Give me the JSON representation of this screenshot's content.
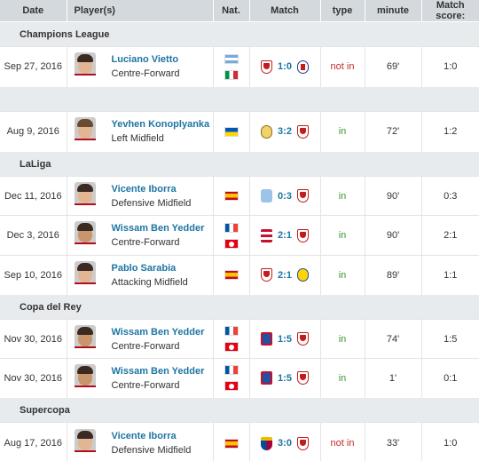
{
  "headers": {
    "date": "Date",
    "players": "Player(s)",
    "nat": "Nat.",
    "match": "Match",
    "type": "type",
    "minute": "minute",
    "score": "Match score:"
  },
  "rows": [
    {
      "kind": "section",
      "title": "Champions League"
    },
    {
      "kind": "player",
      "date": "Sep 27, 2016",
      "name": "Luciano Vietto",
      "position": "Centre-Forward",
      "flags": [
        "argentina",
        "italy"
      ],
      "home_crest": "sevilla-crest",
      "result": "1:0",
      "away_crest": "lyon-crest",
      "type": "not in",
      "minute": "69'",
      "match_score": "1:0"
    },
    {
      "kind": "blank"
    },
    {
      "kind": "player",
      "date": "Aug 9, 2016",
      "name": "Yevhen Konoplyanka",
      "position": "Left Midfield",
      "flags": [
        "ukraine"
      ],
      "home_crest": "real-madrid-crest",
      "result": "3:2",
      "away_crest": "sevilla-crest",
      "type": "in",
      "minute": "72'",
      "match_score": "1:2"
    },
    {
      "kind": "section",
      "title": "LaLiga"
    },
    {
      "kind": "player",
      "date": "Dec 11, 2016",
      "name": "Vicente Iborra",
      "position": "Defensive Midfield",
      "flags": [
        "spain"
      ],
      "home_crest": "celta-crest",
      "result": "0:3",
      "away_crest": "sevilla-crest",
      "type": "in",
      "minute": "90'",
      "match_score": "0:3"
    },
    {
      "kind": "player",
      "date": "Dec 3, 2016",
      "name": "Wissam Ben Yedder",
      "position": "Centre-Forward",
      "flags": [
        "france",
        "tunisia"
      ],
      "home_crest": "granada-crest",
      "result": "2:1",
      "away_crest": "sevilla-crest",
      "type": "in",
      "minute": "90'",
      "match_score": "2:1"
    },
    {
      "kind": "player",
      "date": "Sep 10, 2016",
      "name": "Pablo Sarabia",
      "position": "Attacking Midfield",
      "flags": [
        "spain"
      ],
      "home_crest": "sevilla-crest",
      "result": "2:1",
      "away_crest": "las-palmas-crest",
      "type": "in",
      "minute": "89'",
      "match_score": "1:1"
    },
    {
      "kind": "section",
      "title": "Copa del Rey"
    },
    {
      "kind": "player",
      "date": "Nov 30, 2016",
      "name": "Wissam Ben Yedder",
      "position": "Centre-Forward",
      "flags": [
        "france",
        "tunisia"
      ],
      "home_crest": "formentera-crest",
      "result": "1:5",
      "away_crest": "sevilla-crest",
      "type": "in",
      "minute": "74'",
      "match_score": "1:5"
    },
    {
      "kind": "player",
      "date": "Nov 30, 2016",
      "name": "Wissam Ben Yedder",
      "position": "Centre-Forward",
      "flags": [
        "france",
        "tunisia"
      ],
      "home_crest": "formentera-crest",
      "result": "1:5",
      "away_crest": "sevilla-crest",
      "type": "in",
      "minute": "1'",
      "match_score": "0:1"
    },
    {
      "kind": "section",
      "title": "Supercopa"
    },
    {
      "kind": "player",
      "date": "Aug 17, 2016",
      "name": "Vicente Iborra",
      "position": "Defensive Midfield",
      "flags": [
        "spain"
      ],
      "home_crest": "barcelona-crest",
      "result": "3:0",
      "away_crest": "sevilla-crest",
      "type": "not in",
      "minute": "33'",
      "match_score": "1:0"
    }
  ]
}
